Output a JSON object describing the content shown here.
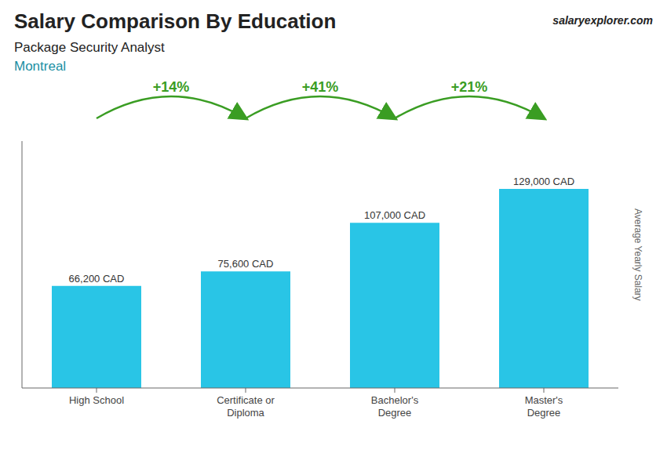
{
  "chart_data": {
    "type": "bar",
    "title": "Salary Comparison By Education",
    "subtitle": "Package Security Analyst",
    "ylabel": "Average Yearly Salary",
    "categories": [
      "High School",
      "Certificate or\nDiploma",
      "Bachelor's\nDegree",
      "Master's\nDegree"
    ],
    "values": [
      66200,
      75600,
      107000,
      129000
    ],
    "value_labels": [
      "66,200 CAD",
      "75,600 CAD",
      "107,000 CAD",
      "129,000 CAD"
    ],
    "data_labels": true,
    "color": "#29c5e6",
    "ylim": [
      0,
      160000
    ],
    "tick_labels": "x",
    "grid": false,
    "annotations": [
      "Montreal",
      "salaryexplorer.com",
      {
        "text": "+14%",
        "from": "High School",
        "to": "Certificate or\nDiploma"
      },
      {
        "text": "+41%",
        "from": "Certificate or\nDiploma",
        "to": "Bachelor's\nDegree"
      },
      {
        "text": "+21%",
        "from": "Bachelor's\nDegree",
        "to": "Master's\nDegree"
      }
    ]
  }
}
